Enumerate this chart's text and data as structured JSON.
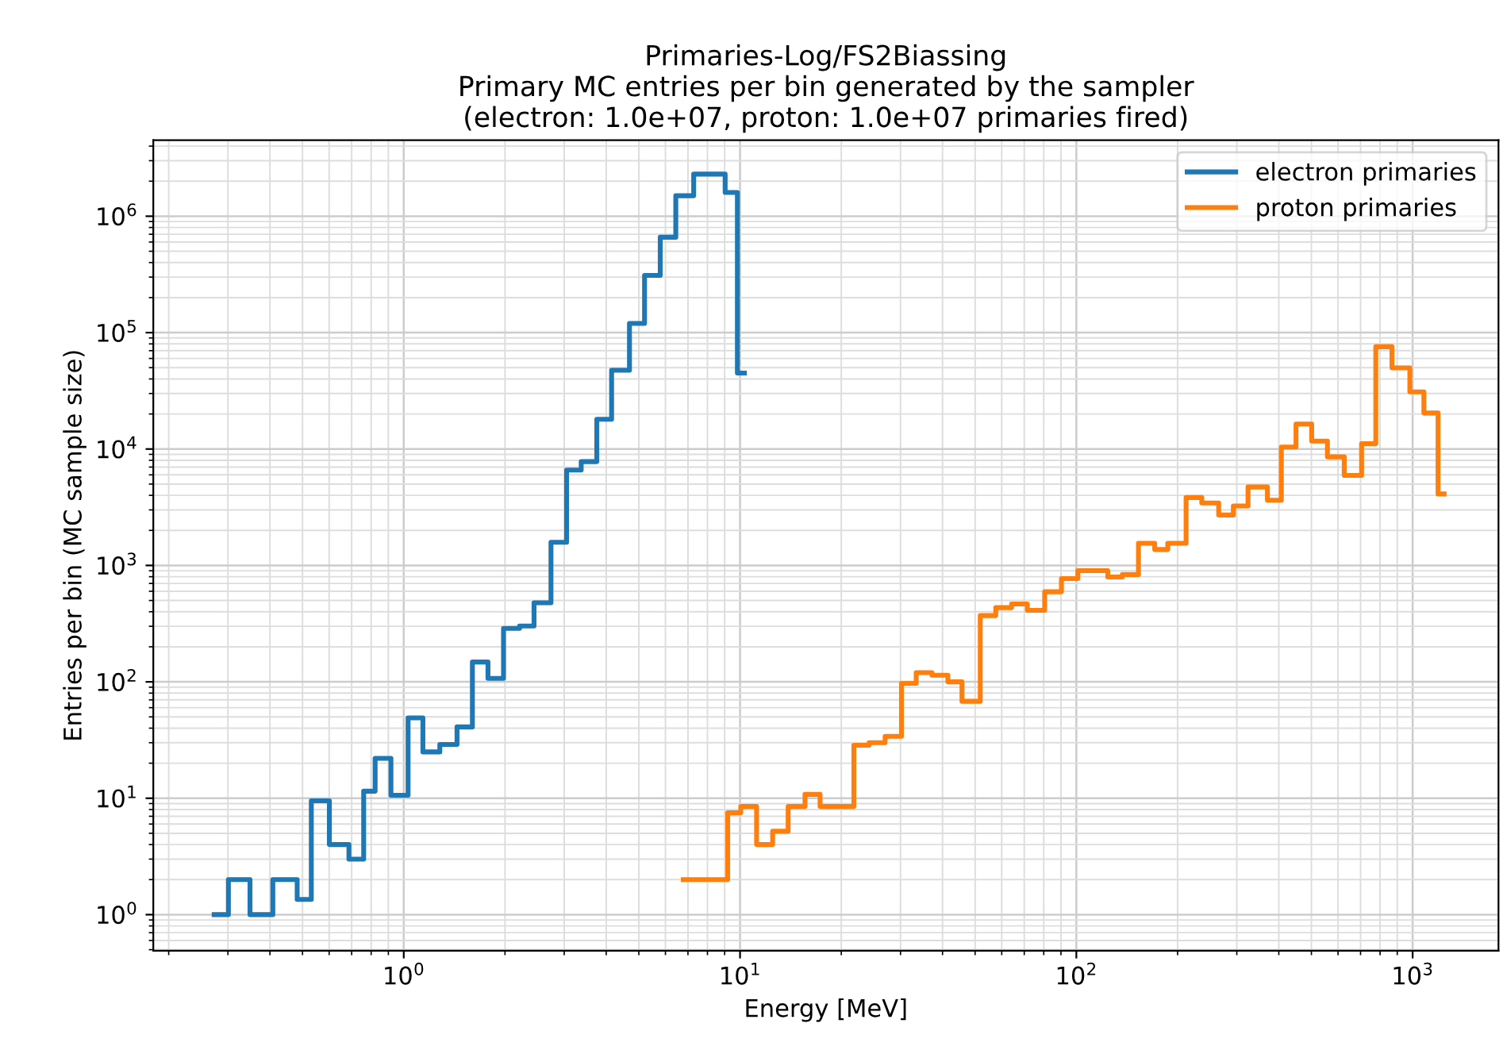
{
  "chart_data": {
    "type": "step",
    "title": "Primaries-Log/FS2Biassing\nPrimary MC entries per bin generated by the sampler\n(electron: 1.0e+07, proton: 1.0e+07 primaries fired)",
    "xlabel": "Energy [MeV]",
    "ylabel": "Entries per bin (MC sample size)",
    "series": [
      {
        "name": "electron primaries",
        "color": "#1f77b4",
        "x": [
          0.273,
          0.301,
          0.349,
          0.408,
          0.482,
          0.531,
          0.601,
          0.687,
          0.76,
          0.822,
          0.916,
          1.03,
          1.14,
          1.28,
          1.44,
          1.6,
          1.78,
          1.98,
          2.21,
          2.44,
          2.74,
          3.05,
          3.37,
          3.75,
          4.15,
          4.69,
          5.2,
          5.79,
          6.44,
          7.28,
          8.11,
          9.03,
          9.82,
          10.3
        ],
        "values": [
          1,
          2,
          1,
          2,
          1.35,
          9.5,
          4,
          3,
          11.5,
          22,
          10.6,
          49,
          25,
          29,
          41,
          148,
          107,
          288,
          302,
          478,
          1580,
          6600,
          7800,
          18000,
          47500,
          120000,
          310000,
          660000,
          1500000,
          2300000,
          2300000,
          1600000,
          45000,
          45000
        ]
      },
      {
        "name": "proton primaries",
        "color": "#ff7f0e",
        "x": [
          6.78,
          9.19,
          10.05,
          11.2,
          12.5,
          13.9,
          15.6,
          17.3,
          21.8,
          24.2,
          27.0,
          30.2,
          33.4,
          37.2,
          41.5,
          45.7,
          51.8,
          57.6,
          64.2,
          71.5,
          80.5,
          90.3,
          101,
          124,
          137,
          153,
          171,
          187,
          212,
          236,
          265,
          293,
          324,
          370,
          407,
          450,
          501,
          558,
          626,
          705,
          777,
          868,
          981,
          1080,
          1190,
          1240
        ],
        "values": [
          2,
          7.5,
          8.5,
          4,
          5.2,
          8.5,
          10.8,
          8.5,
          28.5,
          30,
          34,
          97,
          120,
          114,
          100,
          68,
          371,
          434,
          466,
          411,
          594,
          771,
          902,
          795,
          835,
          1550,
          1370,
          1550,
          3830,
          3440,
          2710,
          3240,
          4720,
          3630,
          10400,
          16400,
          11700,
          8570,
          5930,
          11100,
          75700,
          49800,
          31000,
          20400,
          4110,
          4110
        ]
      }
    ],
    "log": "xy",
    "xlim": [
      0.18,
      1800
    ],
    "ylim": [
      0.49,
      4500000
    ],
    "xticks": [
      {
        "value": 1,
        "label": "10$^{0}$"
      },
      {
        "value": 10,
        "label": "10$^{1}$"
      },
      {
        "value": 100,
        "label": "10$^{2}$"
      },
      {
        "value": 1000,
        "label": "10$^{3}$"
      }
    ],
    "yticks": [
      {
        "value": 1,
        "label": "10$^{0}$"
      },
      {
        "value": 10,
        "label": "10$^{1}$"
      },
      {
        "value": 100,
        "label": "10$^{2}$"
      },
      {
        "value": 1000,
        "label": "10$^{3}$"
      },
      {
        "value": 10000,
        "label": "10$^{4}$"
      },
      {
        "value": 100000,
        "label": "10$^{5}$"
      },
      {
        "value": 1000000,
        "label": "10$^{6}$"
      }
    ],
    "grid": true,
    "legend": "top right"
  }
}
